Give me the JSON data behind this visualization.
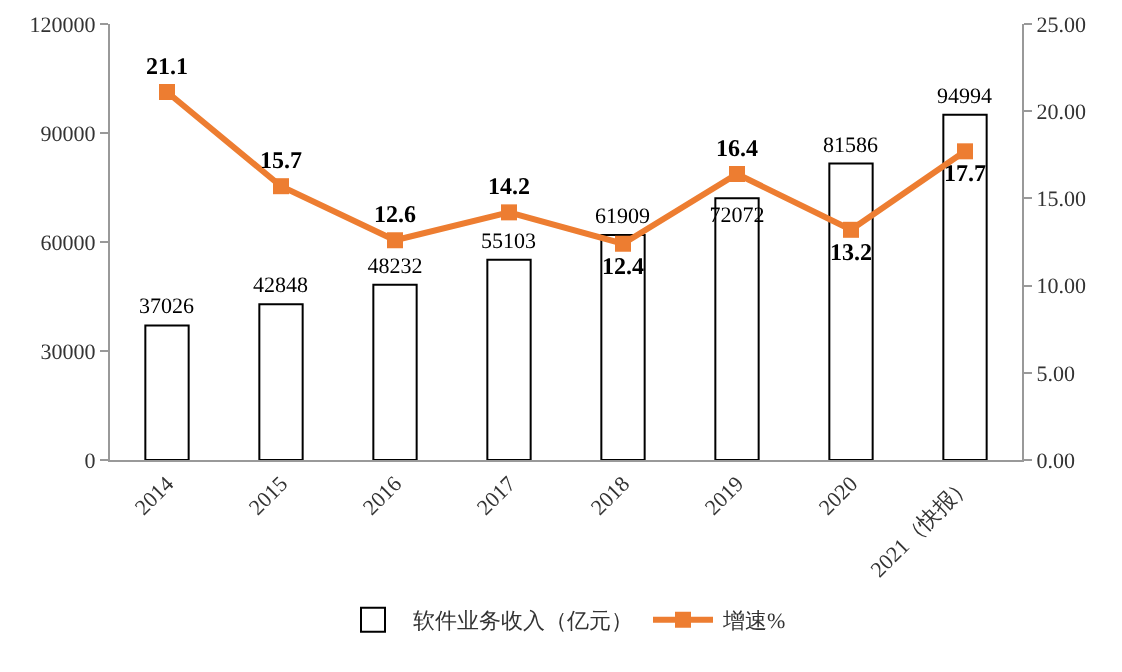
{
  "chart_data": {
    "type": "bar",
    "categories": [
      "2014",
      "2015",
      "2016",
      "2017",
      "2018",
      "2019",
      "2020",
      "2021（快报）"
    ],
    "series": [
      {
        "name": "软件业务收入（亿元）",
        "color": "#ffffff",
        "values": [
          37026,
          42848,
          48232,
          55103,
          61909,
          72072,
          81586,
          94994
        ]
      },
      {
        "name": "增速%",
        "type": "line",
        "axis": "y2",
        "color": "#ed7d31",
        "values": [
          21.1,
          15.7,
          12.6,
          14.2,
          12.4,
          16.4,
          13.2,
          17.7
        ]
      }
    ],
    "ylim": [
      0,
      120000
    ],
    "yticks": [
      0,
      30000,
      60000,
      90000,
      120000
    ],
    "y2lim": [
      0,
      25
    ],
    "y2ticks": [
      {
        "value": 0,
        "label": "0.00"
      },
      {
        "value": 5,
        "label": "5.00"
      },
      {
        "value": 10,
        "label": "10.00"
      },
      {
        "value": 15,
        "label": "15.00"
      },
      {
        "value": 20,
        "label": "20.00"
      },
      {
        "value": 25,
        "label": "25.00"
      }
    ],
    "data_labels": true,
    "grid": false,
    "legend": "bottom",
    "marker": "square",
    "line_style": "solid"
  }
}
